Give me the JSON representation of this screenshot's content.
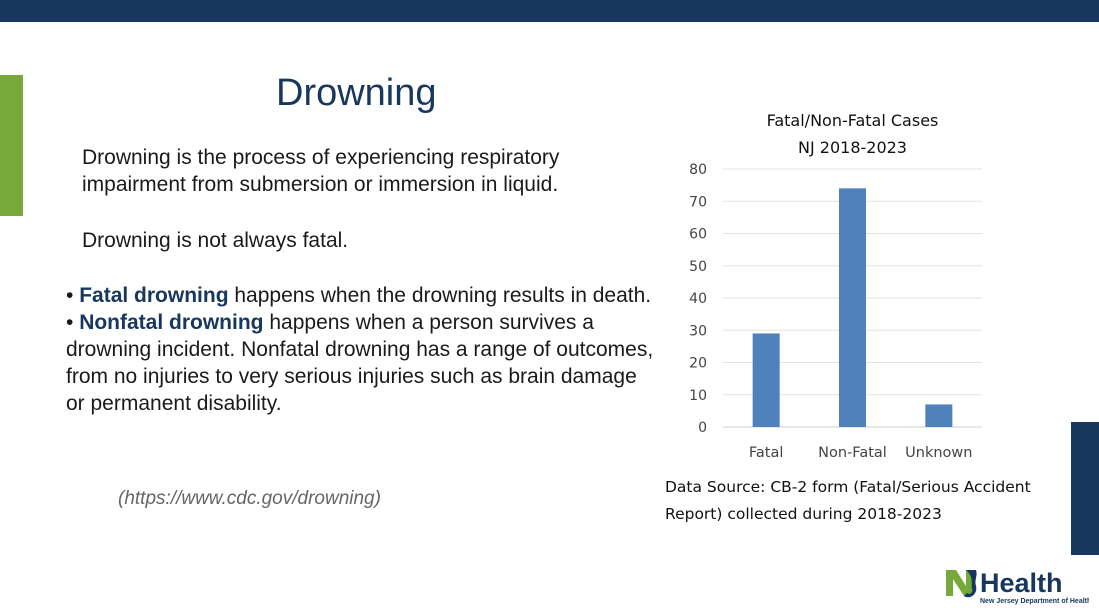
{
  "slide": {
    "title": "Drowning",
    "definition": "Drowning is the process of experiencing respiratory impairment from submersion or immersion in liquid.",
    "not_always_fatal": "Drowning is not always fatal.",
    "bullets": [
      {
        "term": "Fatal drowning",
        "text": " happens when the drowning results in death."
      },
      {
        "term": "Nonfatal drowning",
        "text": " happens when a person survives a drowning incident. Nonfatal drowning has a range of outcomes, from no injuries to very serious injuries such as brain damage or permanent disability."
      }
    ],
    "source_link": "(https://www.cdc.gov/drowning)",
    "data_source": "Data Source: CB-2 form (Fatal/Serious Accident Report) collected during 2018-2023",
    "logo_text": "NJ Health New Jersey Department of Health"
  },
  "colors": {
    "navy": "#17375e",
    "green": "#76a83a",
    "bar": "#4f81bd"
  },
  "chart_data": {
    "type": "bar",
    "title_lines": [
      "Fatal/Non-Fatal Cases",
      "NJ 2018-2023"
    ],
    "categories": [
      "Fatal",
      "Non-Fatal",
      "Unknown"
    ],
    "values": [
      29,
      74,
      7
    ],
    "ylim": [
      0,
      80
    ],
    "yticks": [
      0,
      10,
      20,
      30,
      40,
      50,
      60,
      70,
      80
    ],
    "grid": true,
    "legend": "none"
  }
}
